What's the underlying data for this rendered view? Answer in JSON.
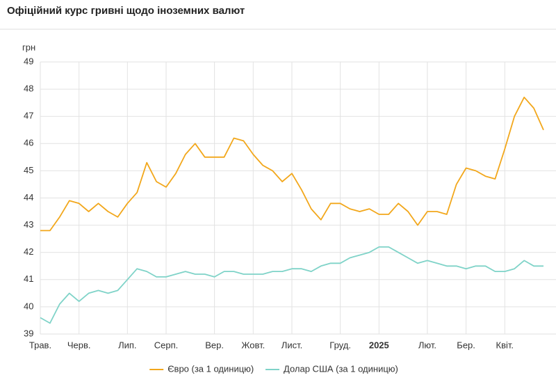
{
  "chart_data": {
    "type": "line",
    "title": "Офіційний курс гривні щодо іноземних валют",
    "y_label": "грн",
    "categories": [
      "Трав.",
      null,
      null,
      null,
      "Черв.",
      null,
      null,
      null,
      null,
      "Лип.",
      null,
      null,
      null,
      "Серп.",
      null,
      null,
      null,
      null,
      "Вер.",
      null,
      null,
      null,
      "Жовт.",
      null,
      null,
      null,
      "Лист.",
      null,
      null,
      null,
      null,
      "Груд.",
      null,
      null,
      null,
      "2025",
      null,
      null,
      null,
      null,
      "Лют.",
      null,
      null,
      null,
      "Бер.",
      null,
      null,
      null,
      "Квіт.",
      null,
      null,
      null,
      null
    ],
    "series": [
      {
        "name": "Євро (за 1 одиницю)",
        "color": "#f2a71b",
        "values": [
          42.8,
          42.8,
          43.3,
          43.9,
          43.8,
          43.5,
          43.8,
          43.5,
          43.3,
          43.8,
          44.2,
          45.3,
          44.6,
          44.4,
          44.9,
          45.6,
          46.0,
          45.5,
          45.5,
          45.5,
          46.2,
          46.1,
          45.6,
          45.2,
          45.0,
          44.6,
          44.9,
          44.3,
          43.6,
          43.2,
          43.8,
          43.8,
          43.6,
          43.5,
          43.6,
          43.4,
          43.4,
          43.8,
          43.5,
          43.0,
          43.5,
          43.5,
          43.4,
          44.5,
          45.1,
          45.0,
          44.8,
          44.7,
          45.8,
          47.0,
          47.7,
          47.3,
          46.5
        ]
      },
      {
        "name": "Долар США (за 1 одиницю)",
        "color": "#7fd3c8",
        "values": [
          39.6,
          39.4,
          40.1,
          40.5,
          40.2,
          40.5,
          40.6,
          40.5,
          40.6,
          41.0,
          41.4,
          41.3,
          41.1,
          41.1,
          41.2,
          41.3,
          41.2,
          41.2,
          41.1,
          41.3,
          41.3,
          41.2,
          41.2,
          41.2,
          41.3,
          41.3,
          41.4,
          41.4,
          41.3,
          41.5,
          41.6,
          41.6,
          41.8,
          41.9,
          42.0,
          42.2,
          42.2,
          42.0,
          41.8,
          41.6,
          41.7,
          41.6,
          41.5,
          41.5,
          41.4,
          41.5,
          41.5,
          41.3,
          41.3,
          41.4,
          41.7,
          41.5,
          41.5
        ]
      }
    ],
    "ylim": [
      39,
      49
    ],
    "yticks": [
      39,
      40,
      41,
      42,
      43,
      44,
      45,
      46,
      47,
      48,
      49
    ],
    "grid": true,
    "legend": "bottom"
  }
}
